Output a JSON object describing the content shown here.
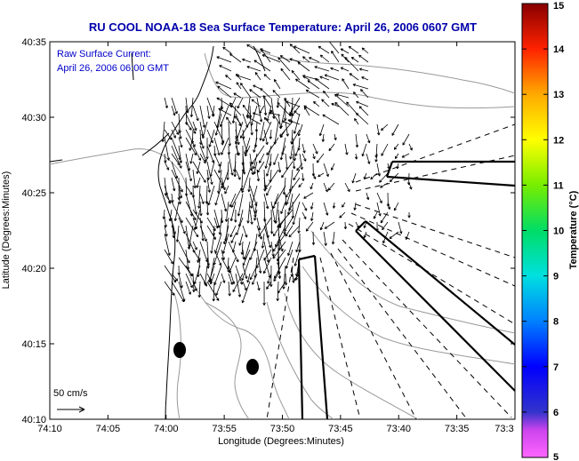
{
  "chart_data": {
    "type": "map-vector",
    "title": "RU COOL  NOAA-18  Sea Surface Temperature:  April 26, 2006 0607 GMT",
    "overlay_label_line1": "Raw Surface Current:",
    "overlay_label_line2": "April 26, 2006 06:00 GMT",
    "xlabel": "Longitude (Degrees:Minutes)",
    "ylabel": "Latitude (Degrees:Minutes)",
    "x_ticks": [
      "74:10",
      "74:05",
      "74:00",
      "73:55",
      "73:50",
      "73:45",
      "73:40",
      "73:35",
      "73:3"
    ],
    "y_ticks": [
      "40:10",
      "40:15",
      "40:20",
      "40:25",
      "40:30",
      "40:35"
    ],
    "scale_label": "50 cm/s",
    "colorbar": {
      "label": "Temperature (°C)",
      "ticks": [
        "5",
        "6",
        "7",
        "8",
        "9",
        "10",
        "11",
        "12",
        "13",
        "14",
        "15"
      ],
      "min": 5,
      "max": 15
    },
    "grid": false,
    "legend_placement": "top-left"
  }
}
